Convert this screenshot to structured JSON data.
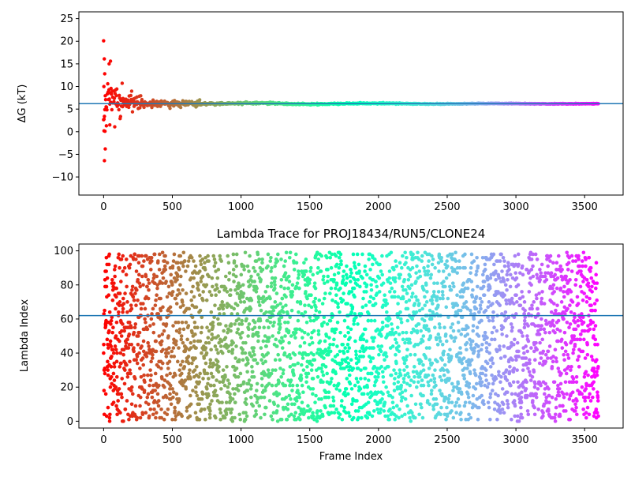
{
  "chart_data": [
    {
      "type": "scatter",
      "title": "",
      "xlabel": "",
      "ylabel": "ΔG (kT)",
      "xlim": [
        -180,
        3780
      ],
      "ylim": [
        -14,
        26.5
      ],
      "xticks": [
        "0",
        "500",
        "1000",
        "1500",
        "2000",
        "2500",
        "3000",
        "3500"
      ],
      "yticks": [
        "−10",
        "−5",
        "0",
        "5",
        "10",
        "15",
        "20",
        "25"
      ],
      "x_range": [
        0,
        3600
      ],
      "colormap": "rainbow (red → violet)",
      "hline": {
        "y": 6.2,
        "color": "#1f77b4"
      },
      "converged_value": 6.2,
      "early_outliers": [
        {
          "x": 0,
          "y": 20.1
        },
        {
          "x": 5,
          "y": 16.1
        },
        {
          "x": 2,
          "y": 10.0
        },
        {
          "x": 8,
          "y": 12.8
        },
        {
          "x": 3,
          "y": 0.2
        },
        {
          "x": 10,
          "y": 0.1
        },
        {
          "x": 12,
          "y": -3.8
        },
        {
          "x": 6,
          "y": -6.4
        },
        {
          "x": 20,
          "y": 1.3
        },
        {
          "x": 40,
          "y": 15.0
        },
        {
          "x": 50,
          "y": 15.6
        },
        {
          "x": 45,
          "y": 1.5
        }
      ]
    },
    {
      "type": "scatter",
      "title": "Lambda Trace for PROJ18434/RUN5/CLONE24",
      "xlabel": "Frame Index",
      "ylabel": "Lambda Index",
      "xlim": [
        -180,
        3780
      ],
      "ylim": [
        -4,
        104
      ],
      "xticks": [
        "0",
        "500",
        "1000",
        "1500",
        "2000",
        "2500",
        "3000",
        "3500"
      ],
      "yticks": [
        "0",
        "20",
        "40",
        "60",
        "80",
        "100"
      ],
      "x_range": [
        0,
        3600
      ],
      "y_range": [
        0,
        99
      ],
      "colormap": "rainbow (red → violet)",
      "hline": {
        "y": 62,
        "color": "#1f77b4"
      }
    }
  ],
  "colors": {
    "hline": "#1f77b4"
  }
}
